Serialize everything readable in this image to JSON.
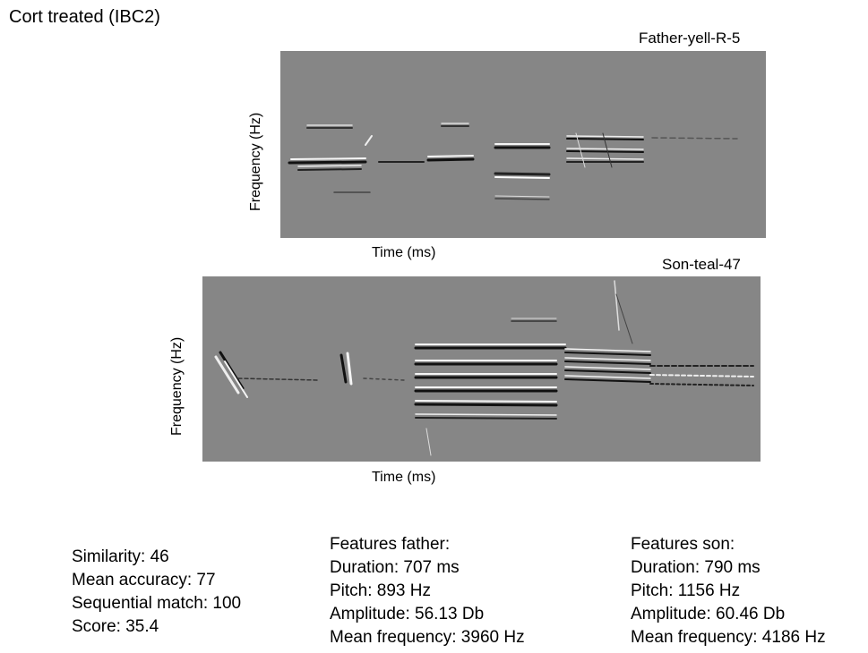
{
  "title": "Cort treated (IBC2)",
  "spectrograms": [
    {
      "label": "Father-yell-R-5",
      "xlabel": "Time (ms)",
      "ylabel": "Frequency (Hz)"
    },
    {
      "label": "Son-teal-47",
      "xlabel": "Time (ms)",
      "ylabel": "Frequency (Hz)"
    }
  ],
  "summary": {
    "similarity": "Similarity: 46",
    "mean_accuracy": "Mean accuracy: 77",
    "sequential_match": "Sequential match: 100",
    "score": "Score: 35.4"
  },
  "father_features": {
    "heading": "Features father:",
    "duration": "Duration: 707 ms",
    "pitch": "Pitch: 893 Hz",
    "amplitude": "Amplitude: 56.13 Db",
    "mean_frequency": "Mean frequency: 3960 Hz"
  },
  "son_features": {
    "heading": "Features son:",
    "duration": "Duration: 790 ms",
    "pitch": "Pitch: 1156 Hz",
    "amplitude": "Amplitude: 60.46 Db",
    "mean_frequency": "Mean frequency: 4186 Hz"
  },
  "colors": {
    "spectrogram_background": "#868686",
    "dark_band": "#111111",
    "light_band": "#f5f5f5"
  }
}
